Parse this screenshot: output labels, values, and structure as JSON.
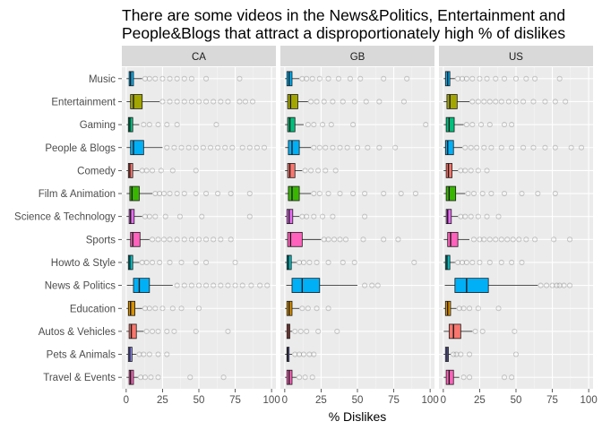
{
  "chart_data": {
    "type": "boxplot",
    "title_lines": [
      "There are some videos in the News&Politics, Entertainment and",
      "People&Blogs that attract a disproportionately high % of dislikes"
    ],
    "xlabel": "% Dislikes",
    "ylabel": "",
    "xlim": [
      -3,
      103
    ],
    "x_ticks": [
      0,
      25,
      50,
      75,
      100
    ],
    "legend": "none",
    "grid": true,
    "facets": [
      "CA",
      "GB",
      "US"
    ],
    "categories": [
      "Music",
      "Entertainment",
      "Gaming",
      "People & Blogs",
      "Comedy",
      "Film & Animation",
      "Science & Technology",
      "Sports",
      "Howto & Style",
      "News & Politics",
      "Education",
      "Autos & Vehicles",
      "Pets & Animals",
      "Travel & Events"
    ],
    "colors": {
      "Music": "#00b0f6",
      "Entertainment": "#a3a500",
      "Gaming": "#00bf7d",
      "People & Blogs": "#00b0f6",
      "Comedy": "#f8766d",
      "Film & Animation": "#39b600",
      "Science & Technology": "#e76bf3",
      "Sports": "#ff62bc",
      "Howto & Style": "#00bfc4",
      "News & Politics": "#00b0f6",
      "Education": "#d89000",
      "Autos & Vehicles": "#f8766d",
      "Pets & Animals": "#9590ff",
      "Travel & Events": "#ff62bc"
    },
    "series": [
      {
        "name": "CA",
        "boxes": [
          {
            "category": "Music",
            "min": 0.2,
            "q1": 2,
            "median": 3,
            "q3": 5,
            "max": 11,
            "outliers": [
              13,
              16,
              20,
              25,
              30,
              35,
              40,
              45,
              55,
              78
            ]
          },
          {
            "category": "Entertainment",
            "min": 0.3,
            "q1": 3,
            "median": 5,
            "q3": 11,
            "max": 23,
            "outliers": [
              25,
              30,
              35,
              40,
              45,
              50,
              55,
              60,
              65,
              70,
              78,
              82,
              87
            ]
          },
          {
            "category": "Gaming",
            "min": 0.3,
            "q1": 1.5,
            "median": 2.5,
            "q3": 4.5,
            "max": 9,
            "outliers": [
              12,
              16,
              22,
              28,
              35,
              62
            ]
          },
          {
            "category": "People & Blogs",
            "min": 0.3,
            "q1": 3,
            "median": 5,
            "q3": 12,
            "max": 25,
            "outliers": [
              28,
              33,
              38,
              43,
              48,
              53,
              58,
              63,
              68,
              73,
              80,
              85,
              90,
              95
            ]
          },
          {
            "category": "Comedy",
            "min": 0.2,
            "q1": 1.5,
            "median": 2.5,
            "q3": 4.5,
            "max": 9,
            "outliers": [
              11,
              14,
              18,
              24,
              32,
              48
            ]
          },
          {
            "category": "Film & Animation",
            "min": 0.3,
            "q1": 2.5,
            "median": 4,
            "q3": 9,
            "max": 18,
            "outliers": [
              20,
              23,
              26,
              30,
              35,
              40,
              48,
              55,
              63,
              72,
              85
            ]
          },
          {
            "category": "Science & Technology",
            "min": 0.2,
            "q1": 2,
            "median": 3,
            "q3": 5.5,
            "max": 11,
            "outliers": [
              13,
              16,
              20,
              27,
              37,
              52,
              85
            ]
          },
          {
            "category": "Sports",
            "min": 0.3,
            "q1": 3,
            "median": 4.5,
            "q3": 9.5,
            "max": 16,
            "outliers": [
              18,
              22,
              26,
              30,
              35,
              40,
              45,
              50,
              55,
              60,
              65,
              72
            ]
          },
          {
            "category": "Howto & Style",
            "min": 0.2,
            "q1": 1.5,
            "median": 2.5,
            "q3": 4.5,
            "max": 9,
            "outliers": [
              11,
              14,
              18,
              23,
              30,
              38,
              48,
              55,
              75
            ]
          },
          {
            "category": "News & Politics",
            "min": 0.5,
            "q1": 5,
            "median": 9,
            "q3": 16,
            "max": 32,
            "outliers": [
              35,
              40,
              45,
              50,
              55,
              60,
              65,
              70,
              75,
              80,
              86,
              92,
              97
            ]
          },
          {
            "category": "Education",
            "min": 0.2,
            "q1": 1.5,
            "median": 3,
            "q3": 6,
            "max": 11,
            "outliers": [
              13,
              16,
              20,
              25,
              32,
              38,
              50
            ]
          },
          {
            "category": "Autos & Vehicles",
            "min": 0.2,
            "q1": 2,
            "median": 3.5,
            "q3": 7,
            "max": 12,
            "outliers": [
              14,
              18,
              22,
              28,
              33,
              48,
              70
            ]
          },
          {
            "category": "Pets & Animals",
            "min": 0.2,
            "q1": 1.5,
            "median": 2.5,
            "q3": 4,
            "max": 7,
            "outliers": [
              9,
              12,
              16,
              22,
              28
            ]
          },
          {
            "category": "Travel & Events",
            "min": 0.2,
            "q1": 2,
            "median": 3,
            "q3": 5,
            "max": 8,
            "outliers": [
              10,
              13,
              17,
              22,
              44,
              67
            ]
          }
        ]
      },
      {
        "name": "GB",
        "boxes": [
          {
            "category": "Music",
            "min": 0.2,
            "q1": 1.5,
            "median": 3,
            "q3": 5,
            "max": 10,
            "outliers": [
              12,
              15,
              19,
              24,
              30,
              37,
              45,
              52,
              68,
              84
            ]
          },
          {
            "category": "Entertainment",
            "min": 0.2,
            "q1": 2,
            "median": 4,
            "q3": 9,
            "max": 16,
            "outliers": [
              18,
              22,
              27,
              33,
              40,
              48,
              56,
              65,
              82
            ]
          },
          {
            "category": "Gaming",
            "min": 0.2,
            "q1": 2,
            "median": 3.5,
            "q3": 7,
            "max": 13,
            "outliers": [
              16,
              20,
              26,
              32,
              47,
              97
            ]
          },
          {
            "category": "People & Blogs",
            "min": 0.3,
            "q1": 2.5,
            "median": 5,
            "q3": 10,
            "max": 18,
            "outliers": [
              20,
              24,
              28,
              33,
              38,
              43,
              50,
              57,
              65,
              76
            ]
          },
          {
            "category": "Comedy",
            "min": 0.2,
            "q1": 2,
            "median": 3.5,
            "q3": 7,
            "max": 12,
            "outliers": [
              14,
              18,
              23,
              28,
              35
            ]
          },
          {
            "category": "Film & Animation",
            "min": 0.3,
            "q1": 2.5,
            "median": 5,
            "q3": 10,
            "max": 18,
            "outliers": [
              20,
              24,
              30,
              38,
              47,
              55,
              68,
              80,
              90
            ]
          },
          {
            "category": "Science & Technology",
            "min": 0.2,
            "q1": 1.5,
            "median": 3,
            "q3": 5.5,
            "max": 10,
            "outliers": [
              12,
              15,
              20,
              26,
              33,
              55
            ]
          },
          {
            "category": "Sports",
            "min": 0.3,
            "q1": 2,
            "median": 4,
            "q3": 12,
            "max": 25,
            "outliers": [
              27,
              30,
              34,
              38,
              42,
              54,
              68,
              78
            ]
          },
          {
            "category": "Howto & Style",
            "min": 0.2,
            "q1": 1.5,
            "median": 2.5,
            "q3": 4.5,
            "max": 8,
            "outliers": [
              10,
              13,
              17,
              22,
              30,
              40,
              48,
              89
            ]
          },
          {
            "category": "News & Politics",
            "min": 1,
            "q1": 5,
            "median": 12,
            "q3": 24,
            "max": 50,
            "outliers": [
              55,
              60,
              64
            ]
          },
          {
            "category": "Education",
            "min": 0.2,
            "q1": 1.5,
            "median": 3,
            "q3": 5,
            "max": 10,
            "outliers": [
              12,
              16,
              22,
              30
            ]
          },
          {
            "category": "Autos & Vehicles",
            "min": 0.2,
            "q1": 1.5,
            "median": 2.5,
            "q3": 3.5,
            "max": 5,
            "outliers": [
              7,
              11,
              15,
              23,
              36
            ]
          },
          {
            "category": "Pets & Animals",
            "min": 0.2,
            "q1": 1.5,
            "median": 2,
            "q3": 3,
            "max": 5,
            "outliers": [
              7,
              10,
              13,
              17,
              20
            ]
          },
          {
            "category": "Travel & Events",
            "min": 0.2,
            "q1": 1.5,
            "median": 3,
            "q3": 5,
            "max": 8,
            "outliers": [
              10,
              14,
              19
            ]
          }
        ]
      },
      {
        "name": "US",
        "boxes": [
          {
            "category": "Music",
            "min": 0.2,
            "q1": 1.5,
            "median": 3,
            "q3": 4.5,
            "max": 8,
            "outliers": [
              10,
              13,
              16,
              20,
              25,
              30,
              36,
              42,
              50,
              57,
              63,
              80
            ]
          },
          {
            "category": "Entertainment",
            "min": 0.2,
            "q1": 2.5,
            "median": 4.5,
            "q3": 9.5,
            "max": 18,
            "outliers": [
              20,
              24,
              28,
              32,
              36,
              40,
              45,
              50,
              55,
              62,
              70,
              77,
              84
            ]
          },
          {
            "category": "Gaming",
            "min": 0.3,
            "q1": 2,
            "median": 4,
            "q3": 7.5,
            "max": 14,
            "outliers": [
              16,
              20,
              26,
              32,
              42,
              47
            ]
          },
          {
            "category": "People & Blogs",
            "min": 0.2,
            "q1": 1.5,
            "median": 3,
            "q3": 7,
            "max": 13,
            "outliers": [
              15,
              19,
              23,
              28,
              33,
              40,
              47,
              55,
              62,
              70,
              77,
              88,
              95
            ]
          },
          {
            "category": "Comedy",
            "min": 0.2,
            "q1": 2,
            "median": 3.5,
            "q3": 6,
            "max": 10,
            "outliers": [
              12,
              15,
              19,
              24,
              30
            ]
          },
          {
            "category": "Film & Animation",
            "min": 0.3,
            "q1": 2,
            "median": 4,
            "q3": 8.5,
            "max": 15,
            "outliers": [
              17,
              21,
              27,
              33,
              42,
              54,
              65,
              77
            ]
          },
          {
            "category": "Science & Technology",
            "min": 0.2,
            "q1": 2,
            "median": 3,
            "q3": 5.5,
            "max": 10,
            "outliers": [
              12,
              15,
              19,
              24,
              30,
              38
            ]
          },
          {
            "category": "Sports",
            "min": 0.3,
            "q1": 3,
            "median": 5,
            "q3": 10,
            "max": 18,
            "outliers": [
              21,
              25,
              28,
              32,
              36,
              40,
              44,
              48,
              52,
              57,
              63,
              76,
              87
            ]
          },
          {
            "category": "Howto & Style",
            "min": 0.2,
            "q1": 1.5,
            "median": 2.5,
            "q3": 4.5,
            "max": 8,
            "outliers": [
              10,
              13,
              16,
              20,
              25,
              32,
              40,
              47,
              54
            ]
          },
          {
            "category": "News & Politics",
            "min": 1,
            "q1": 8,
            "median": 16,
            "q3": 31,
            "max": 65,
            "outliers": [
              67,
              71,
              75,
              78,
              80,
              83,
              87
            ]
          },
          {
            "category": "Education",
            "min": 0.2,
            "q1": 1.5,
            "median": 3,
            "q3": 5,
            "max": 9,
            "outliers": [
              11,
              14,
              18,
              24,
              38
            ]
          },
          {
            "category": "Autos & Vehicles",
            "min": 0.3,
            "q1": 4,
            "median": 7,
            "q3": 12,
            "max": 20,
            "outliers": [
              22,
              27,
              49
            ]
          },
          {
            "category": "Pets & Animals",
            "min": 0.2,
            "q1": 1.5,
            "median": 2.5,
            "q3": 3.5,
            "max": 5,
            "outliers": [
              7,
              9,
              12,
              18,
              50
            ]
          },
          {
            "category": "Travel & Events",
            "min": 0.3,
            "q1": 2,
            "median": 4,
            "q3": 7,
            "max": 11,
            "outliers": [
              14,
              18,
              42,
              47
            ]
          }
        ]
      }
    ]
  }
}
